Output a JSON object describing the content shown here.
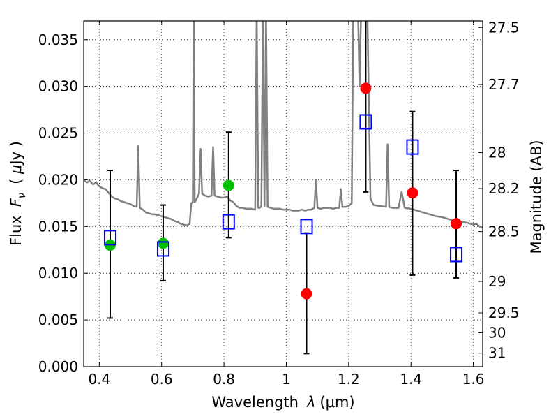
{
  "chart_data": {
    "type": "scatter",
    "xlabel": "Wavelength  λ (μm)",
    "ylabel": "Flux  F_ν  ( μJy )",
    "ylabel_parts": {
      "prefix": "Flux",
      "symbol": "F",
      "subscript": "ν",
      "unit_open": "( ",
      "unit_mu": "μ",
      "unit_rest": "Jy )"
    },
    "xlabel_parts": {
      "prefix": "Wavelength",
      "symbol": "λ",
      "unit": "(μm)"
    },
    "y2label": "Magnitude (AB)",
    "xlim": [
      0.35,
      1.63
    ],
    "ylim": [
      0.0,
      0.037
    ],
    "grid": true,
    "x_ticks": [
      {
        "value": 0.4,
        "label": "0.4"
      },
      {
        "value": 0.6,
        "label": "0.6"
      },
      {
        "value": 0.8,
        "label": "0.8"
      },
      {
        "value": 1.0,
        "label": "1"
      },
      {
        "value": 1.2,
        "label": "1.2"
      },
      {
        "value": 1.4,
        "label": "1.4"
      },
      {
        "value": 1.6,
        "label": "1.6"
      }
    ],
    "y_ticks": [
      {
        "value": 0.0,
        "label": "0.000"
      },
      {
        "value": 0.005,
        "label": "0.005"
      },
      {
        "value": 0.01,
        "label": "0.010"
      },
      {
        "value": 0.015,
        "label": "0.015"
      },
      {
        "value": 0.02,
        "label": "0.020"
      },
      {
        "value": 0.025,
        "label": "0.025"
      },
      {
        "value": 0.03,
        "label": "0.030"
      },
      {
        "value": 0.035,
        "label": "0.035"
      }
    ],
    "y2_ticks": [
      {
        "label": "27.5"
      },
      {
        "label": "27.7"
      },
      {
        "label": "28"
      },
      {
        "label": "28.2"
      },
      {
        "label": "28.5"
      },
      {
        "label": "29"
      },
      {
        "label": "29.5"
      },
      {
        "label": "30"
      },
      {
        "label": "31"
      }
    ],
    "y2_tick_values": [
      27.5,
      27.7,
      28.0,
      28.2,
      28.5,
      29.0,
      29.5,
      30.0,
      31.0
    ],
    "model_spectrum": {
      "color": "#808080",
      "points": [
        [
          0.35,
          0.02
        ],
        [
          0.36,
          0.0197
        ],
        [
          0.37,
          0.0199
        ],
        [
          0.38,
          0.0195
        ],
        [
          0.39,
          0.0197
        ],
        [
          0.4,
          0.0193
        ],
        [
          0.41,
          0.0191
        ],
        [
          0.42,
          0.019
        ],
        [
          0.43,
          0.0186
        ],
        [
          0.44,
          0.0182
        ],
        [
          0.45,
          0.018
        ],
        [
          0.46,
          0.0179
        ],
        [
          0.47,
          0.0177
        ],
        [
          0.48,
          0.0176
        ],
        [
          0.49,
          0.0175
        ],
        [
          0.5,
          0.0174
        ],
        [
          0.51,
          0.0172
        ],
        [
          0.52,
          0.0171
        ],
        [
          0.525,
          0.0236
        ],
        [
          0.53,
          0.017
        ],
        [
          0.54,
          0.0168
        ],
        [
          0.55,
          0.0165
        ],
        [
          0.56,
          0.0164
        ],
        [
          0.57,
          0.0163
        ],
        [
          0.58,
          0.0163
        ],
        [
          0.59,
          0.0162
        ],
        [
          0.6,
          0.0161
        ],
        [
          0.61,
          0.016
        ],
        [
          0.62,
          0.0159
        ],
        [
          0.63,
          0.0158
        ],
        [
          0.64,
          0.0156
        ],
        [
          0.65,
          0.0155
        ],
        [
          0.66,
          0.0153
        ],
        [
          0.67,
          0.0152
        ],
        [
          0.68,
          0.0151
        ],
        [
          0.69,
          0.0153
        ],
        [
          0.695,
          0.0175
        ],
        [
          0.7,
          0.0176
        ],
        [
          0.703,
          0.038
        ],
        [
          0.706,
          0.0176
        ],
        [
          0.71,
          0.0178
        ],
        [
          0.72,
          0.0185
        ],
        [
          0.725,
          0.0233
        ],
        [
          0.73,
          0.0185
        ],
        [
          0.74,
          0.0183
        ],
        [
          0.75,
          0.0182
        ],
        [
          0.76,
          0.0183
        ],
        [
          0.765,
          0.0235
        ],
        [
          0.77,
          0.0183
        ],
        [
          0.78,
          0.0182
        ],
        [
          0.79,
          0.0181
        ],
        [
          0.8,
          0.0181
        ],
        [
          0.81,
          0.0182
        ],
        [
          0.82,
          0.0178
        ],
        [
          0.83,
          0.0176
        ],
        [
          0.84,
          0.0172
        ],
        [
          0.85,
          0.017
        ],
        [
          0.86,
          0.017
        ],
        [
          0.87,
          0.0169
        ],
        [
          0.88,
          0.0169
        ],
        [
          0.89,
          0.0169
        ],
        [
          0.9,
          0.0168
        ],
        [
          0.905,
          0.038
        ],
        [
          0.91,
          0.017
        ],
        [
          0.915,
          0.017
        ],
        [
          0.92,
          0.0172
        ],
        [
          0.925,
          0.038
        ],
        [
          0.93,
          0.0172
        ],
        [
          0.935,
          0.038
        ],
        [
          0.94,
          0.0171
        ],
        [
          0.95,
          0.017
        ],
        [
          0.96,
          0.0169
        ],
        [
          0.97,
          0.0169
        ],
        [
          0.98,
          0.0169
        ],
        [
          0.99,
          0.0168
        ],
        [
          1.0,
          0.0168
        ],
        [
          1.01,
          0.0168
        ],
        [
          1.02,
          0.0167
        ],
        [
          1.03,
          0.0167
        ],
        [
          1.04,
          0.0167
        ],
        [
          1.05,
          0.0168
        ],
        [
          1.06,
          0.0167
        ],
        [
          1.07,
          0.0168
        ],
        [
          1.08,
          0.0168
        ],
        [
          1.09,
          0.017
        ],
        [
          1.095,
          0.02
        ],
        [
          1.1,
          0.017
        ],
        [
          1.11,
          0.0169
        ],
        [
          1.12,
          0.017
        ],
        [
          1.13,
          0.017
        ],
        [
          1.14,
          0.017
        ],
        [
          1.15,
          0.0169
        ],
        [
          1.16,
          0.017
        ],
        [
          1.17,
          0.017
        ],
        [
          1.175,
          0.019
        ],
        [
          1.18,
          0.0171
        ],
        [
          1.19,
          0.0171
        ],
        [
          1.2,
          0.0172
        ],
        [
          1.21,
          0.0175
        ],
        [
          1.215,
          0.038
        ],
        [
          1.22,
          0.038
        ],
        [
          1.23,
          0.038
        ],
        [
          1.235,
          0.03
        ],
        [
          1.24,
          0.038
        ],
        [
          1.25,
          0.038
        ],
        [
          1.26,
          0.038
        ],
        [
          1.27,
          0.018
        ],
        [
          1.28,
          0.0173
        ],
        [
          1.3,
          0.0172
        ],
        [
          1.32,
          0.0171
        ],
        [
          1.325,
          0.0238
        ],
        [
          1.33,
          0.0171
        ],
        [
          1.34,
          0.017
        ],
        [
          1.36,
          0.017
        ],
        [
          1.37,
          0.0187
        ],
        [
          1.38,
          0.017
        ],
        [
          1.4,
          0.0169
        ],
        [
          1.42,
          0.0167
        ],
        [
          1.44,
          0.0165
        ],
        [
          1.46,
          0.0163
        ],
        [
          1.48,
          0.0161
        ],
        [
          1.5,
          0.016
        ],
        [
          1.52,
          0.0158
        ],
        [
          1.54,
          0.0156
        ],
        [
          1.56,
          0.0155
        ],
        [
          1.58,
          0.0154
        ],
        [
          1.6,
          0.0152
        ],
        [
          1.61,
          0.0153
        ],
        [
          1.62,
          0.015
        ],
        [
          1.63,
          0.0149
        ]
      ]
    },
    "series": [
      {
        "marker": "circle",
        "color": "#00c000",
        "points": [
          {
            "x": 0.435,
            "y": 0.013,
            "err_low": 0.0052,
            "err_high": 0.021
          },
          {
            "x": 0.605,
            "y": 0.0132,
            "err_low": 0.0092,
            "err_high": 0.0173
          },
          {
            "x": 0.815,
            "y": 0.0194,
            "err_low": 0.0138,
            "err_high": 0.0251
          }
        ]
      },
      {
        "marker": "circle",
        "color": "#ff0000",
        "points": [
          {
            "x": 1.065,
            "y": 0.0078,
            "err_low": 0.0014,
            "err_high": 0.0143
          },
          {
            "x": 1.255,
            "y": 0.0298,
            "err_low": 0.0187,
            "err_high": 0.045
          },
          {
            "x": 1.405,
            "y": 0.0186,
            "err_low": 0.0098,
            "err_high": 0.0273
          },
          {
            "x": 1.545,
            "y": 0.0153,
            "err_low": 0.0095,
            "err_high": 0.021
          }
        ]
      },
      {
        "marker": "open-square",
        "color": "#0000ff",
        "points": [
          {
            "x": 0.435,
            "y": 0.0138
          },
          {
            "x": 0.605,
            "y": 0.0126
          },
          {
            "x": 0.815,
            "y": 0.0155
          },
          {
            "x": 1.065,
            "y": 0.015
          },
          {
            "x": 1.255,
            "y": 0.0262
          },
          {
            "x": 1.405,
            "y": 0.0235
          },
          {
            "x": 1.545,
            "y": 0.012
          }
        ]
      }
    ]
  }
}
